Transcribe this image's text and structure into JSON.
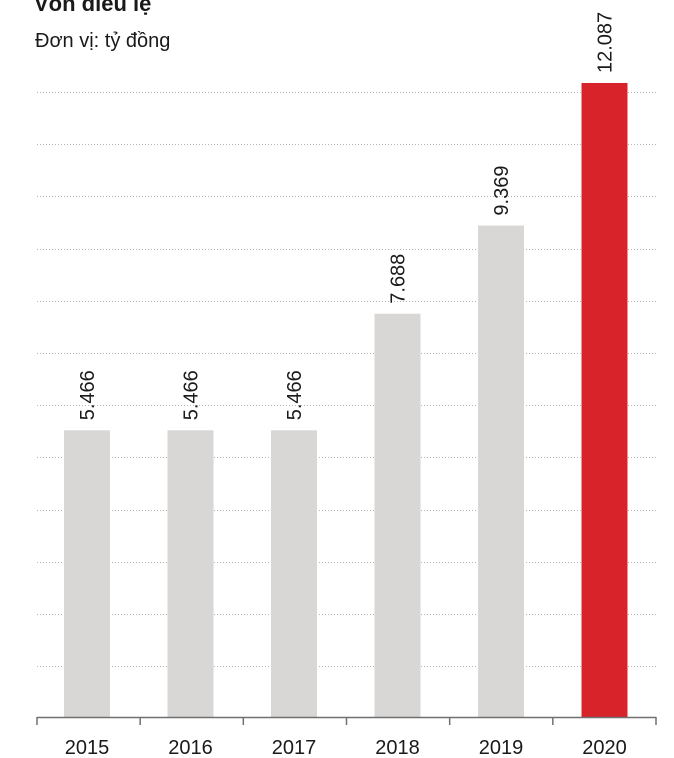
{
  "chart_data": {
    "type": "bar",
    "title": "Vốn điều lệ",
    "subtitle": "Đơn vị: tỷ đồng",
    "xlabel": "",
    "ylabel": "",
    "categories": [
      "2015",
      "2016",
      "2017",
      "2018",
      "2019",
      "2020"
    ],
    "values": [
      5466,
      5466,
      5466,
      7688,
      9369,
      12087
    ],
    "value_labels": [
      "5.466",
      "5.466",
      "5.466",
      "7.688",
      "9.369",
      "12.087"
    ],
    "ylim": [
      0,
      12087
    ],
    "grid": true,
    "highlight_index": 5,
    "colors": {
      "bar": "#d9d7d6",
      "highlight": "#d8232a",
      "grid": "#b5b5b5",
      "axis": "#707070",
      "text": "#1a1a1a"
    }
  }
}
